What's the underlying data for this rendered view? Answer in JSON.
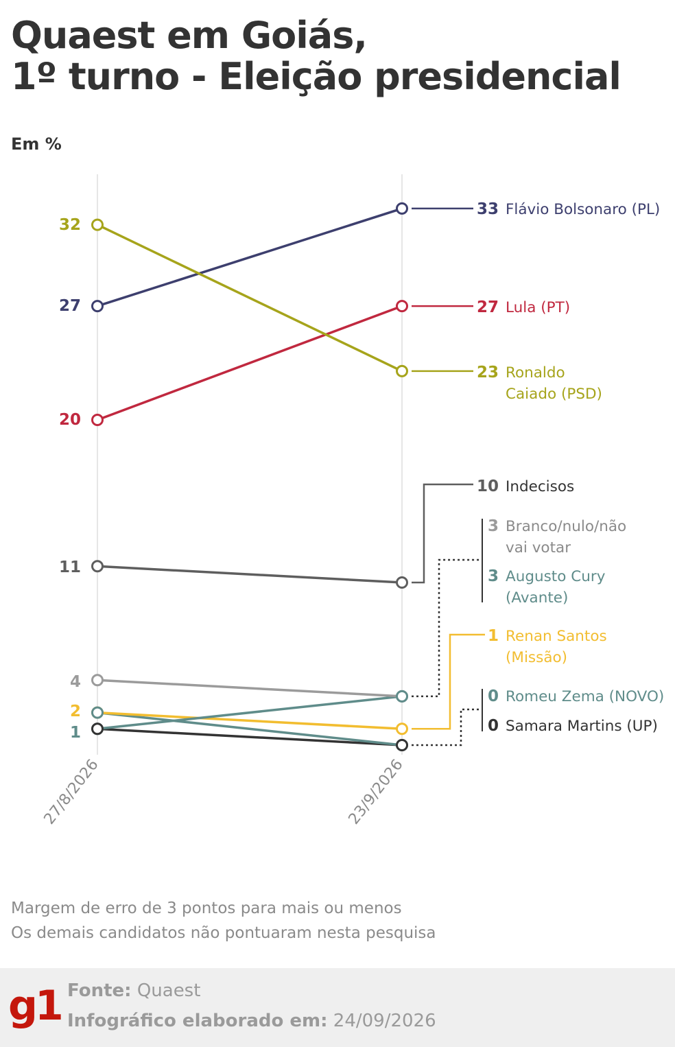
{
  "title_line1": "Quaest em Goiás,",
  "title_line2": "1º turno - Eleição presidencial",
  "unit_label": "Em %",
  "notes": [
    "Margem de erro de 3 pontos para mais ou menos",
    "Os demais candidatos não pontuaram nesta pesquisa"
  ],
  "footer": {
    "logo": "g1",
    "source_label": "Fonte:",
    "source_value": "Quaest",
    "date_label": "Infográfico elaborado em:",
    "date_value": "24/09/2026"
  },
  "chart_data": {
    "type": "line",
    "x": [
      "27/8/2026",
      "23/9/2026"
    ],
    "ylim": [
      0,
      33
    ],
    "grid": "vertical",
    "series": [
      {
        "name": "Flávio Bolsonaro (PL)",
        "values": [
          27,
          33
        ],
        "color": "#3d3f6e"
      },
      {
        "name": "Lula (PT)",
        "values": [
          20,
          27
        ],
        "color": "#c0283f"
      },
      {
        "name": "Ronaldo Caiado (PSD)",
        "values": [
          32,
          23
        ],
        "color": "#a6a41b"
      },
      {
        "name": "Indecisos",
        "values": [
          11,
          10
        ],
        "color": "#5e5e5e"
      },
      {
        "name": "Branco/nulo/não vai votar",
        "values": [
          4,
          3
        ],
        "color": "#9b9b9b"
      },
      {
        "name": "Augusto Cury (Avante)",
        "values": [
          1,
          3
        ],
        "color": "#5f8c8a"
      },
      {
        "name": "Renan Santos (Missão)",
        "values": [
          2,
          1
        ],
        "color": "#f2bd30"
      },
      {
        "name": "Romeu Zema (NOVO)",
        "values": [
          2,
          0
        ],
        "color": "#5f8c8a"
      },
      {
        "name": "Samara Martins (UP)",
        "values": [
          1,
          0
        ],
        "color": "#333333"
      }
    ],
    "start_labels": [
      {
        "text": "32",
        "color": "#a6a41b"
      },
      {
        "text": "27",
        "color": "#3d3f6e"
      },
      {
        "text": "20",
        "color": "#c0283f"
      },
      {
        "text": "11",
        "color": "#5e5e5e"
      },
      {
        "text": "4",
        "color": "#9b9b9b"
      },
      {
        "text": "2",
        "color": "#f2bd30"
      },
      {
        "text": "1",
        "color": "#5f8c8a"
      }
    ],
    "end_labels": [
      {
        "value": "33",
        "lines": [
          "Flávio Bolsonaro (PL)"
        ],
        "color": "#3d3f6e",
        "text_color": "#3d3f6e"
      },
      {
        "value": "27",
        "lines": [
          "Lula (PT)"
        ],
        "color": "#c0283f",
        "text_color": "#c0283f"
      },
      {
        "value": "23",
        "lines": [
          "Ronaldo",
          "Caiado (PSD)"
        ],
        "color": "#a6a41b",
        "text_color": "#a6a41b"
      },
      {
        "value": "10",
        "lines": [
          "Indecisos"
        ],
        "color": "#5e5e5e",
        "text_color": "#333333"
      },
      {
        "value": "3",
        "lines": [
          "Branco/nulo/não",
          "vai votar"
        ],
        "color": "#9b9b9b",
        "text_color": "#8a8a8a"
      },
      {
        "value": "3",
        "lines": [
          "Augusto Cury",
          "(Avante)"
        ],
        "color": "#5f8c8a",
        "text_color": "#5f8c8a"
      },
      {
        "value": "1",
        "lines": [
          "Renan Santos",
          "(Missão)"
        ],
        "color": "#f2bd30",
        "text_color": "#f2bd30"
      },
      {
        "value": "0",
        "lines": [
          "Romeu Zema (NOVO)"
        ],
        "color": "#5f8c8a",
        "text_color": "#5f8c8a"
      },
      {
        "value": "0",
        "lines": [
          "Samara Martins (UP)"
        ],
        "color": "#333333",
        "text_color": "#333333"
      }
    ]
  }
}
